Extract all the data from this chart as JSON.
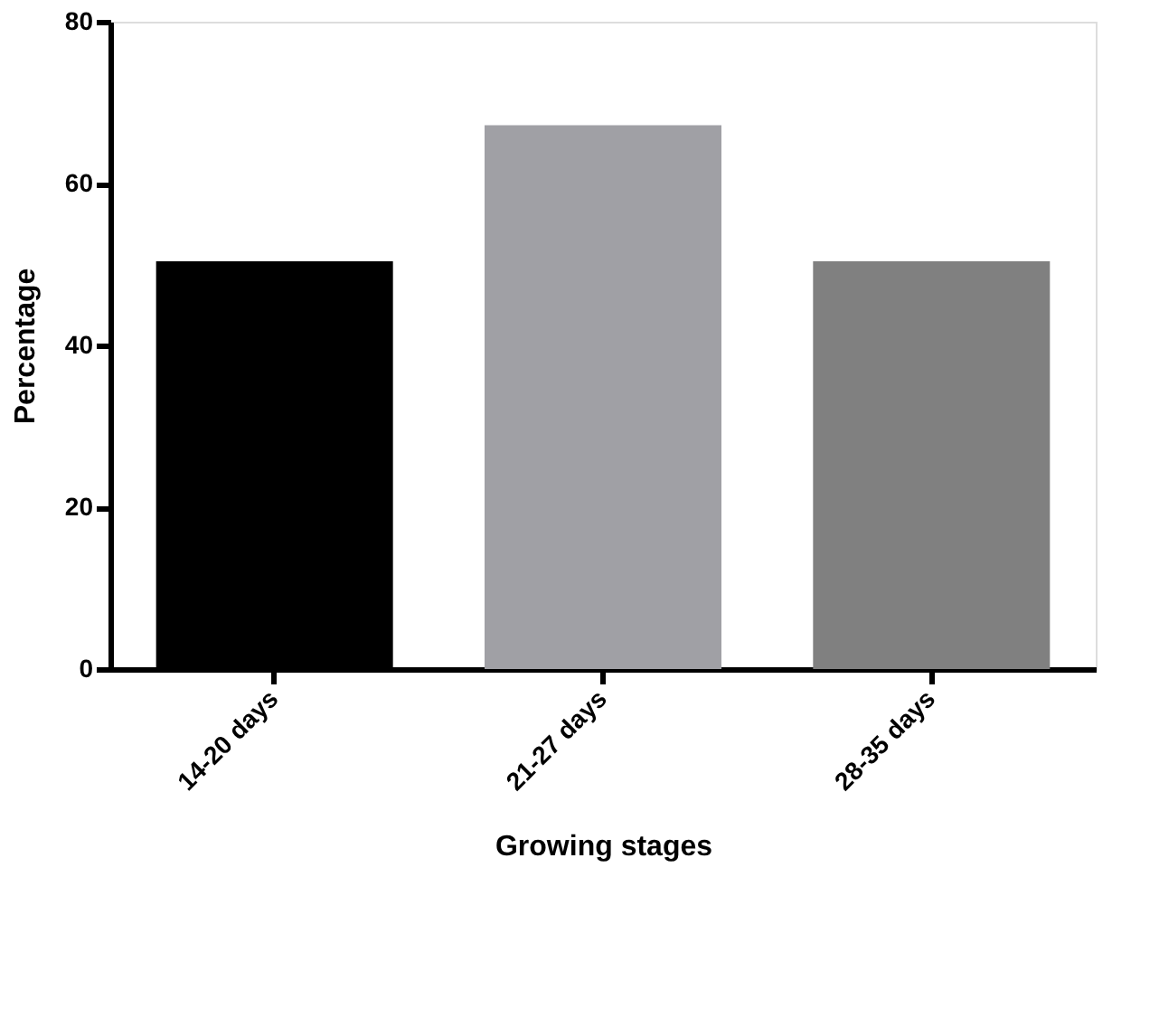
{
  "chart_data": {
    "type": "bar",
    "xlabel": "Growing stages",
    "ylabel": "Percentage",
    "categories": [
      "14-20 days",
      "21-27 days",
      "28-35 days"
    ],
    "values": [
      50.4,
      67.2,
      50.4
    ],
    "colors": [
      "#000000",
      "#a0a0a5",
      "#808080"
    ],
    "ylim": [
      0,
      80
    ],
    "yticks": [
      0,
      20,
      40,
      60,
      80
    ],
    "grid": false
  }
}
